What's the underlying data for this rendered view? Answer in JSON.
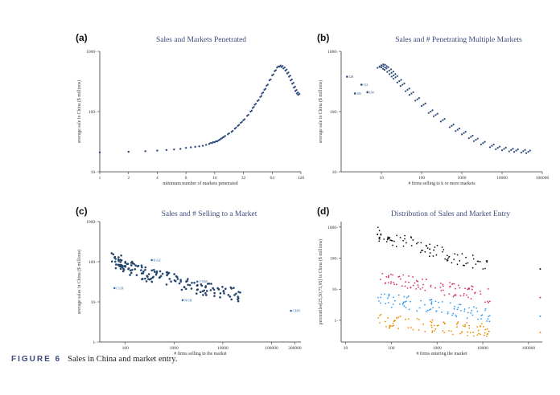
{
  "caption": {
    "figure": "FIGURE 6",
    "text": "Sales in China and market entry."
  },
  "panels": [
    {
      "label": "(a)",
      "title": "Sales and Markets Penetrated"
    },
    {
      "label": "(b)",
      "title": "Sales and # Penetrating Multiple Markets"
    },
    {
      "label": "(c)",
      "title": "Sales and # Selling to a Market"
    },
    {
      "label": "(d)",
      "title": "Distribution of Sales and Market Entry"
    }
  ],
  "chart_data": [
    {
      "type": "scatter",
      "title": "Sales and Markets Penetrated",
      "xlabel": "minimum number of markets penetrated",
      "ylabel": "average sale in China ($ millions)",
      "xscale": "log2",
      "yscale": "log10",
      "xlim": [
        1,
        128
      ],
      "ylim": [
        10,
        1000
      ],
      "xticks": [
        "1",
        "2",
        "4",
        "8",
        "16",
        "32",
        "64",
        "128"
      ],
      "yticks": [
        "10",
        "100",
        "1000"
      ],
      "x": [
        1,
        2,
        3,
        4,
        5,
        6,
        7,
        8,
        9,
        10,
        11,
        12,
        13,
        14,
        15,
        16,
        17,
        18,
        19,
        20,
        22,
        24,
        26,
        28,
        30,
        32,
        35,
        38,
        40,
        42,
        45,
        48,
        50,
        53,
        56,
        60,
        64,
        68,
        72,
        76,
        80,
        84,
        88,
        92,
        96,
        100,
        104,
        108,
        112,
        116,
        120
      ],
      "y": [
        21,
        21.5,
        22,
        22.5,
        23,
        23.5,
        24,
        25,
        25.5,
        26,
        26.5,
        27,
        28,
        29,
        30,
        31,
        32,
        34,
        36,
        38,
        42,
        46,
        52,
        58,
        65,
        72,
        85,
        100,
        115,
        130,
        150,
        175,
        200,
        230,
        270,
        330,
        400,
        470,
        540,
        560,
        550,
        520,
        480,
        430,
        380,
        330,
        290,
        250,
        220,
        200,
        190
      ]
    },
    {
      "type": "scatter",
      "title": "Sales and # Penetrating Multiple Markets",
      "xlabel": "# firms selling to k or more markets",
      "ylabel": "average sale in China ($ millions)",
      "xscale": "log10",
      "yscale": "log10",
      "xlim": [
        1,
        100000
      ],
      "ylim": [
        10,
        1000
      ],
      "xticks": [
        "10",
        "100",
        "1000",
        "10000",
        "100000"
      ],
      "yticks": [
        "10",
        "100",
        "1000"
      ],
      "labeled_points": [
        {
          "label": "128",
          "x": 1.4,
          "y": 380
        },
        {
          "label": "113",
          "x": 3.2,
          "y": 280
        },
        {
          "label": "105",
          "x": 2.2,
          "y": 200
        },
        {
          "label": "104",
          "x": 4.5,
          "y": 210
        }
      ],
      "x": [
        8,
        9,
        10,
        11,
        12,
        14,
        16,
        18,
        20,
        25,
        30,
        40,
        50,
        70,
        100,
        150,
        200,
        300,
        500,
        700,
        1000,
        1500,
        2000,
        3000,
        5000,
        7000,
        10000,
        15000,
        20000,
        30000,
        40000
      ],
      "y": [
        560,
        580,
        570,
        540,
        520,
        480,
        440,
        400,
        370,
        320,
        280,
        230,
        200,
        160,
        130,
        100,
        88,
        72,
        58,
        50,
        44,
        38,
        34,
        30,
        27,
        25,
        24,
        23,
        22.5,
        22,
        21.5
      ]
    },
    {
      "type": "scatter",
      "title": "Sales and # Selling to a Market",
      "xlabel": "# firms selling in the market",
      "ylabel": "average sales in China ($ millions)",
      "xscale": "log10",
      "yscale": "log10",
      "xlim": [
        30,
        400000
      ],
      "ylim": [
        1,
        1000
      ],
      "xticks": [
        "100",
        "1000",
        "10000",
        "100000",
        "300000"
      ],
      "yticks": [
        "1",
        "10",
        "100",
        "1000"
      ],
      "labeled_points": [
        {
          "label": "CHN",
          "x": 250000,
          "y": 6
        },
        {
          "label": "KAZ",
          "x": 350,
          "y": 110
        },
        {
          "label": "CUB",
          "x": 60,
          "y": 22
        },
        {
          "label": "VNM",
          "x": 3000,
          "y": 32
        },
        {
          "label": "NOR",
          "x": 1500,
          "y": 11
        }
      ],
      "x": [
        60,
        70,
        80,
        90,
        100,
        120,
        150,
        200,
        250,
        300,
        400,
        500,
        700,
        1000,
        1500,
        2000,
        3000,
        4000,
        5000,
        7000,
        10000,
        15000,
        20000
      ],
      "y": [
        120,
        100,
        90,
        80,
        75,
        70,
        65,
        60,
        55,
        50,
        45,
        42,
        38,
        34,
        30,
        27,
        24,
        22,
        20,
        18,
        17,
        16,
        15
      ]
    },
    {
      "type": "scatter",
      "title": "Distribution of Sales and Market Entry",
      "xlabel": "# firms entering the market",
      "ylabel": "percentiles[25,50,75,95] in China ($ millions)",
      "xscale": "log10",
      "yscale": "log10",
      "xlim": [
        8,
        200000
      ],
      "ylim": [
        0.2,
        1500
      ],
      "xticks": [
        "10",
        "100",
        "1000",
        "10000",
        "100000"
      ],
      "yticks": [
        "1",
        "10",
        "100",
        "1000"
      ],
      "series": [
        {
          "name": "p95",
          "color": "#111111",
          "y_start": 600,
          "y_end": 50
        },
        {
          "name": "p75",
          "color": "#d6336c",
          "y_start": 25,
          "y_end": 6
        },
        {
          "name": "p50",
          "color": "#339af0",
          "y_start": 5,
          "y_end": 1.5
        },
        {
          "name": "p25",
          "color": "#f08c00",
          "y_start": 1,
          "y_end": 0.45
        }
      ]
    }
  ]
}
